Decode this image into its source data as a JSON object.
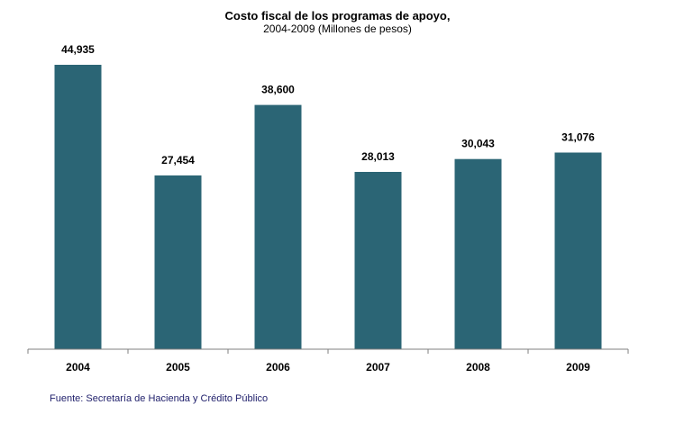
{
  "chart_data": {
    "type": "bar",
    "title": "Costo fiscal de los programas de apoyo,",
    "subtitle": "2004-2009 (Millones de pesos)",
    "categories": [
      "2004",
      "2005",
      "2006",
      "2007",
      "2008",
      "2009"
    ],
    "values": [
      44935,
      27454,
      38600,
      28013,
      30043,
      31076
    ],
    "value_labels": [
      "44,935",
      "27,454",
      "38,600",
      "28,013",
      "30,043",
      "31,076"
    ],
    "ylim": [
      0,
      44935
    ],
    "grid": false,
    "legend": "none",
    "bar_color": "#2b6575"
  },
  "source": "Fuente: Secretaría de Hacienda y Crédito Público"
}
